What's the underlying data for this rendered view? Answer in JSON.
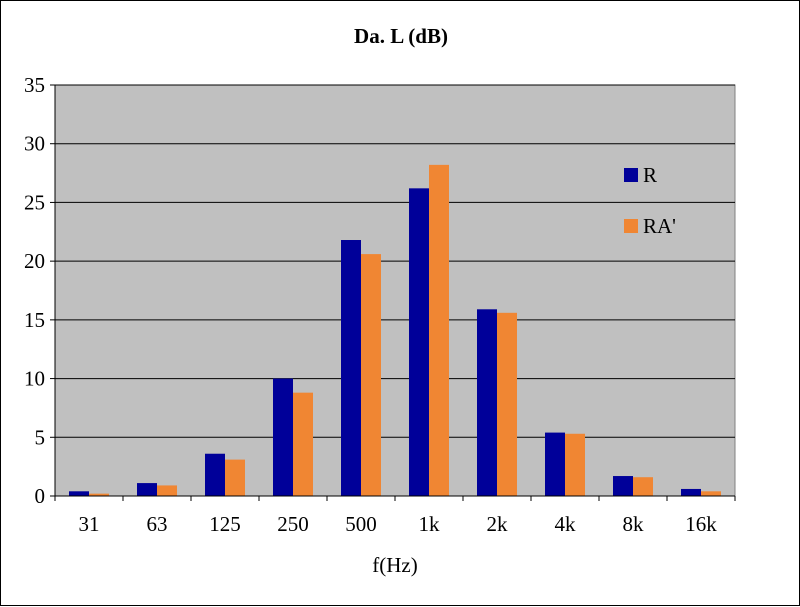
{
  "chart_data": {
    "type": "bar",
    "title": "Da. L (dB)",
    "xlabel": "f(Hz)",
    "ylabel": "",
    "categories": [
      "31",
      "63",
      "125",
      "250",
      "500",
      "1k",
      "2k",
      "4k",
      "8k",
      "16k"
    ],
    "series": [
      {
        "name": "R",
        "color": "#000099",
        "values": [
          0.4,
          1.1,
          3.6,
          10.0,
          21.8,
          26.2,
          15.9,
          5.4,
          1.7,
          0.6
        ]
      },
      {
        "name": "RA'",
        "color": "#f08633",
        "values": [
          0.2,
          0.9,
          3.1,
          8.8,
          20.6,
          28.2,
          15.6,
          5.3,
          1.6,
          0.4
        ]
      }
    ],
    "ylim": [
      0,
      35
    ],
    "yticks": [
      0,
      5,
      10,
      15,
      20,
      25,
      30,
      35
    ],
    "grid": true,
    "legend_position": "right",
    "plot_background": "#c0c0c0"
  }
}
